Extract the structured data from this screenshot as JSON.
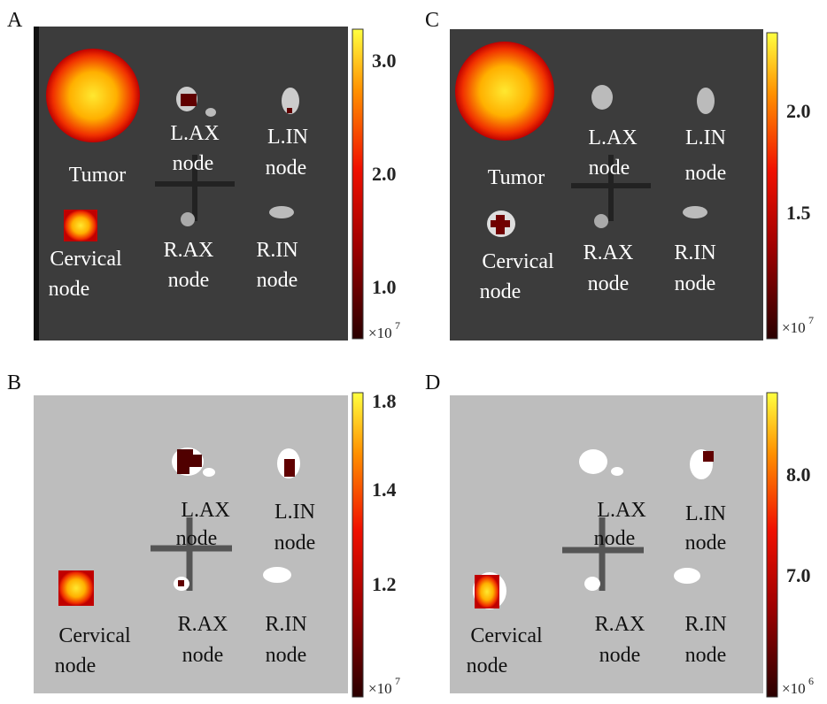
{
  "panels": [
    {
      "letter": "A",
      "organs": [
        [
          "Tumor"
        ],
        [
          "L.AX",
          "node"
        ],
        [
          "L.IN",
          "node"
        ],
        [
          "Cervical",
          "node"
        ],
        [
          "R.AX",
          "node"
        ],
        [
          "R.IN",
          "node"
        ]
      ],
      "colorbar": {
        "ticks": [
          "3.0",
          "2.0",
          "1.0"
        ],
        "scale_base": "×10",
        "scale_exp": "7"
      }
    },
    {
      "letter": "C",
      "organs": [
        [
          "Tumor"
        ],
        [
          "L.AX",
          "node"
        ],
        [
          "L.IN",
          "node"
        ],
        [
          "Cervical",
          "node"
        ],
        [
          "R.AX",
          "node"
        ],
        [
          "R.IN",
          "node"
        ]
      ],
      "colorbar": {
        "ticks": [
          "2.0",
          "1.5"
        ],
        "scale_base": "×10",
        "scale_exp": "7"
      }
    },
    {
      "letter": "B",
      "organs": [
        [
          "L.AX",
          "node"
        ],
        [
          "L.IN",
          "node"
        ],
        [
          "Cervical",
          "node"
        ],
        [
          "R.AX",
          "node"
        ],
        [
          "R.IN",
          "node"
        ]
      ],
      "colorbar": {
        "ticks": [
          "1.8",
          "1.4",
          "1.2"
        ],
        "scale_base": "×10",
        "scale_exp": "7"
      }
    },
    {
      "letter": "D",
      "organs": [
        [
          "L.AX",
          "node"
        ],
        [
          "L.IN",
          "node"
        ],
        [
          "Cervical",
          "node"
        ],
        [
          "R.AX",
          "node"
        ],
        [
          "R.IN",
          "node"
        ]
      ],
      "colorbar": {
        "ticks": [
          "8.0",
          "7.0"
        ],
        "scale_base": "×10",
        "scale_exp": "6"
      }
    }
  ]
}
